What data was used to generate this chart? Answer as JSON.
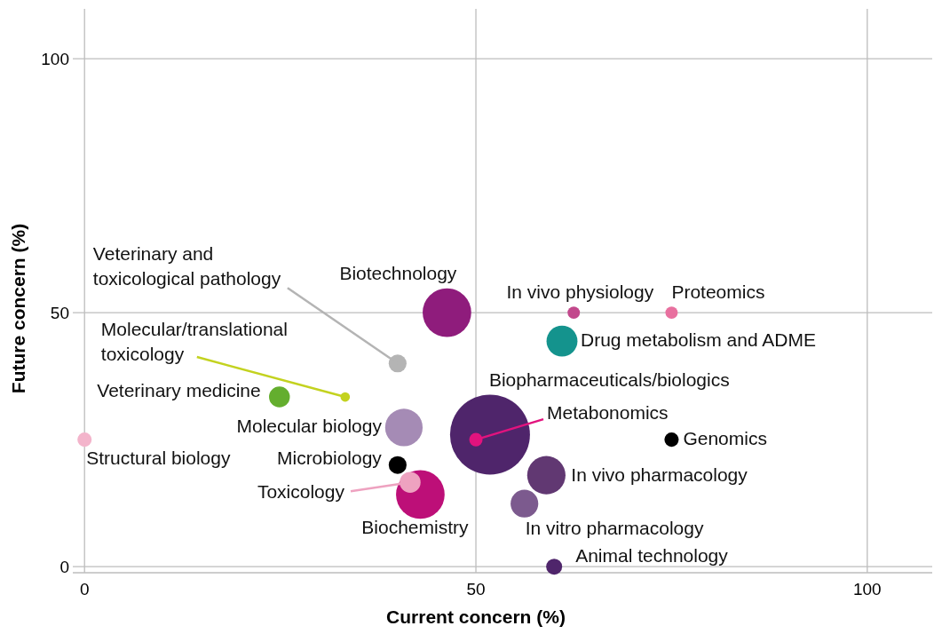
{
  "chart_data": {
    "type": "bubble",
    "xlabel": "Current concern (%)",
    "ylabel": "Future concern (%)",
    "xlim": [
      -1.5,
      108.3
    ],
    "ylim": [
      -1.2,
      109.8
    ],
    "xticks": [
      0,
      50,
      100
    ],
    "yticks": [
      0,
      50,
      100
    ],
    "grid": true,
    "series": [
      {
        "name": "Biopharmaceuticals/biologics",
        "color": "#4f256b",
        "x": [
          51.8
        ],
        "values": [
          26
        ],
        "sizes": [
          1
        ]
      },
      {
        "name": "Biotechnology",
        "color": "#8f1c7c",
        "x": [
          46.3
        ],
        "values": [
          50
        ],
        "sizes": [
          0.37
        ]
      },
      {
        "name": "Biochemistry",
        "color": "#bd0f78",
        "x": [
          42.9
        ],
        "values": [
          14.2
        ],
        "sizes": [
          0.37
        ]
      },
      {
        "name": "In vivo pharmacology",
        "color": "#613872",
        "x": [
          59
        ],
        "values": [
          18
        ],
        "sizes": [
          0.23
        ]
      },
      {
        "name": "Molecular biology",
        "color": "#a58bb5",
        "x": [
          40.8
        ],
        "values": [
          27.4
        ],
        "sizes": [
          0.22
        ]
      },
      {
        "name": "Drug metabolism and ADME",
        "color": "#14938d",
        "x": [
          61
        ],
        "values": [
          44.4
        ],
        "sizes": [
          0.15
        ]
      },
      {
        "name": "In vitro pharmacology",
        "color": "#7c5a8e",
        "x": [
          56.2
        ],
        "values": [
          12.4
        ],
        "sizes": [
          0.12
        ]
      },
      {
        "name": "Veterinary medicine",
        "color": "#64ae2e",
        "x": [
          24.9
        ],
        "values": [
          33.4
        ],
        "sizes": [
          0.068
        ]
      },
      {
        "name": "Toxicology",
        "color": "#eea2c0",
        "x": [
          41.6
        ],
        "values": [
          16.6
        ],
        "sizes": [
          0.068
        ]
      },
      {
        "name": "Veterinary and toxicological pathology",
        "color": "#b4b4b4",
        "x": [
          40
        ],
        "values": [
          40
        ],
        "sizes": [
          0.05
        ]
      },
      {
        "name": "Microbiology",
        "color": "#000000",
        "x": [
          40
        ],
        "values": [
          20
        ],
        "sizes": [
          0.05
        ]
      },
      {
        "name": "Animal technology",
        "color": "#4f256b",
        "x": [
          60
        ],
        "values": [
          0
        ],
        "sizes": [
          0.04
        ]
      },
      {
        "name": "Genomics",
        "color": "#000000",
        "x": [
          75
        ],
        "values": [
          25
        ],
        "sizes": [
          0.032
        ]
      },
      {
        "name": "Metabonomics",
        "color": "#e2137e",
        "x": [
          50
        ],
        "values": [
          25
        ],
        "sizes": [
          0.028
        ]
      },
      {
        "name": "Proteomics",
        "color": "#e8709f",
        "x": [
          75
        ],
        "values": [
          50
        ],
        "sizes": [
          0.024
        ]
      },
      {
        "name": "In vivo physiology",
        "color": "#c2488c",
        "x": [
          62.5
        ],
        "values": [
          50
        ],
        "sizes": [
          0.024
        ]
      },
      {
        "name": "Structural biology",
        "color": "#f3b4cb",
        "x": [
          0
        ],
        "values": [
          25
        ],
        "sizes": [
          0.032
        ]
      },
      {
        "name": "Molecular/translational toxicology",
        "color": "#c3d21f",
        "x": [
          33.3
        ],
        "values": [
          33.4
        ],
        "sizes": [
          0.014
        ]
      }
    ]
  }
}
